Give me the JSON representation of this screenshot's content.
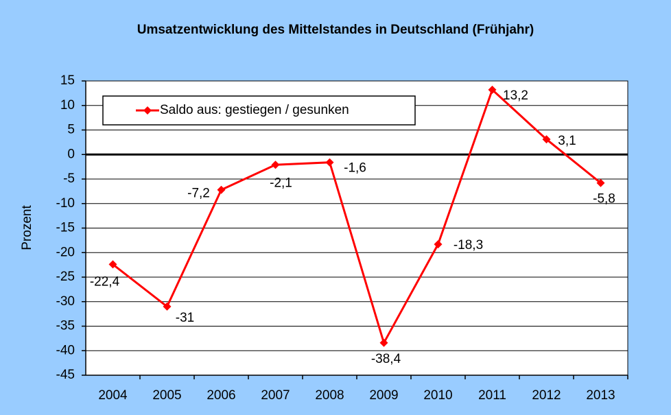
{
  "chart_data": {
    "type": "line",
    "title": "Umsatzentwicklung des Mittelstandes in Deutschland (Frühjahr)",
    "y_label": "Prozent",
    "categories": [
      "2004",
      "2005",
      "2006",
      "2007",
      "2008",
      "2009",
      "2010",
      "2011",
      "2012",
      "2013"
    ],
    "series": [
      {
        "name": "Saldo aus: gestiegen / gesunken",
        "color": "#ff0000",
        "values": [
          -22.4,
          -31,
          -7.2,
          -2.1,
          -1.6,
          -38.4,
          -18.3,
          13.2,
          3.1,
          -5.8
        ],
        "value_labels": [
          "-22,4",
          "-31",
          "-7,2",
          "-2,1",
          "-1,6",
          "-38,4",
          "-18,3",
          "13,2",
          "3,1",
          "-5,8"
        ]
      }
    ],
    "ylim": [
      -45,
      15
    ],
    "yticks": [
      15,
      10,
      5,
      0,
      -5,
      -10,
      -15,
      -20,
      -25,
      -30,
      -35,
      -40,
      -45
    ],
    "grid": true
  }
}
